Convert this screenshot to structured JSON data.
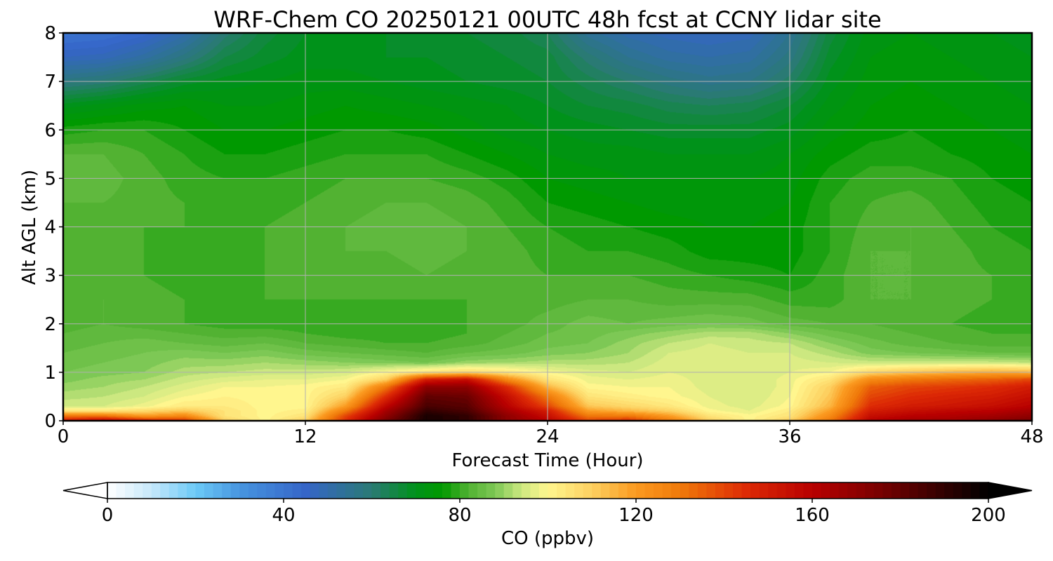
{
  "chart_data": {
    "type": "heatmap",
    "title": "WRF-Chem CO  20250121 00UTC 48h fcst at CCNY lidar site",
    "xlabel": "Forecast Time (Hour)",
    "ylabel": "Alt AGL (km)",
    "xlim": [
      0,
      48
    ],
    "ylim": [
      0,
      8
    ],
    "x_ticks": [
      0,
      12,
      24,
      36,
      48
    ],
    "x_tick_labels": [
      "0",
      "12",
      "24",
      "36",
      "48"
    ],
    "y_ticks": [
      0,
      1,
      2,
      3,
      4,
      5,
      6,
      7,
      8
    ],
    "y_tick_labels": [
      "0",
      "1",
      "2",
      "3",
      "4",
      "5",
      "6",
      "7",
      "8"
    ],
    "grid": true,
    "x": [
      0,
      2,
      4,
      6,
      8,
      10,
      12,
      14,
      16,
      18,
      20,
      22,
      24,
      26,
      28,
      30,
      32,
      34,
      36,
      38,
      40,
      42,
      44,
      46,
      48
    ],
    "y": [
      0,
      0.1,
      0.2,
      0.3,
      0.5,
      0.7,
      0.85,
      1.0,
      1.2,
      1.4,
      1.6,
      1.8,
      2.0,
      2.5,
      3.0,
      3.5,
      4.0,
      4.5,
      5.0,
      5.5,
      6.0,
      6.5,
      7.0,
      7.5,
      8.0
    ],
    "values": [
      [
        150,
        160,
        150,
        145,
        110,
        100,
        110,
        145,
        175,
        195,
        190,
        170,
        160,
        140,
        145,
        130,
        110,
        100,
        110,
        130,
        160,
        165,
        165,
        170,
        175
      ],
      [
        130,
        130,
        120,
        125,
        105,
        100,
        105,
        140,
        170,
        195,
        190,
        170,
        155,
        130,
        130,
        120,
        105,
        100,
        105,
        125,
        155,
        160,
        162,
        165,
        170
      ],
      [
        105,
        105,
        108,
        112,
        105,
        100,
        102,
        130,
        165,
        190,
        185,
        165,
        150,
        120,
        115,
        110,
        100,
        97,
        103,
        120,
        150,
        155,
        158,
        160,
        165
      ],
      [
        95,
        95,
        98,
        103,
        103,
        100,
        100,
        120,
        158,
        185,
        182,
        160,
        140,
        112,
        108,
        104,
        98,
        96,
        100,
        115,
        145,
        150,
        152,
        155,
        160
      ],
      [
        92,
        93,
        95,
        99,
        101,
        100,
        100,
        110,
        145,
        180,
        178,
        155,
        130,
        105,
        102,
        100,
        97,
        95,
        99,
        112,
        140,
        145,
        148,
        150,
        155
      ],
      [
        90,
        91,
        93,
        96,
        99,
        99,
        100,
        103,
        130,
        170,
        170,
        145,
        115,
        100,
        99,
        99,
        96,
        95,
        98,
        110,
        135,
        140,
        142,
        145,
        150
      ],
      [
        88,
        90,
        91,
        94,
        96,
        97,
        97,
        99,
        110,
        150,
        155,
        125,
        105,
        98,
        97,
        98,
        96,
        95,
        98,
        105,
        125,
        130,
        133,
        135,
        140
      ],
      [
        87,
        88,
        89,
        92,
        93,
        94,
        94,
        95,
        100,
        105,
        108,
        104,
        99,
        96,
        95,
        97,
        96,
        95,
        97,
        99,
        108,
        112,
        115,
        117,
        115
      ],
      [
        86,
        87,
        88,
        90,
        90,
        91,
        90,
        89,
        88,
        87,
        90,
        91,
        92,
        92,
        93,
        96,
        96,
        95,
        96,
        95,
        94,
        94,
        94,
        94,
        93
      ],
      [
        85,
        86,
        87,
        88,
        87,
        88,
        86,
        85,
        84,
        83,
        85,
        86,
        88,
        89,
        91,
        95,
        96,
        95,
        95,
        92,
        88,
        87,
        86,
        85,
        85
      ],
      [
        84,
        85,
        86,
        85,
        84,
        85,
        83,
        82,
        81,
        81,
        82,
        84,
        86,
        87,
        90,
        93,
        95,
        94,
        93,
        89,
        86,
        84,
        83,
        82,
        82
      ],
      [
        83,
        84,
        84,
        83,
        82,
        82,
        81,
        80,
        80,
        80,
        81,
        83,
        85,
        86,
        88,
        90,
        92,
        92,
        89,
        86,
        84,
        83,
        82,
        81,
        81
      ],
      [
        82,
        83,
        82,
        81,
        80,
        80,
        80,
        80,
        80,
        80,
        81,
        82,
        84,
        86,
        85,
        86,
        87,
        86,
        84,
        83,
        83,
        82,
        81,
        80,
        80
      ],
      [
        82,
        83,
        82,
        81,
        80,
        81,
        81,
        81,
        81,
        81,
        81,
        82,
        82,
        83,
        83,
        82,
        82,
        82,
        80,
        80,
        83,
        83,
        82,
        81,
        80
      ],
      [
        82,
        82,
        81,
        80,
        80,
        81,
        82,
        82,
        82,
        83,
        82,
        82,
        81,
        81,
        81,
        80,
        79,
        78,
        77,
        80,
        83,
        83,
        82,
        81,
        80
      ],
      [
        82,
        82,
        81,
        80,
        80,
        81,
        82,
        83,
        83,
        84,
        83,
        82,
        80,
        79,
        79,
        78,
        76,
        76,
        76,
        79,
        83,
        83,
        82,
        80,
        79
      ],
      [
        82,
        82,
        81,
        81,
        80,
        81,
        82,
        83,
        84,
        84,
        83,
        81,
        79,
        78,
        77,
        76,
        75,
        75,
        76,
        79,
        82,
        83,
        81,
        79,
        78
      ],
      [
        83,
        83,
        82,
        81,
        80,
        80,
        81,
        82,
        83,
        83,
        82,
        80,
        77,
        76,
        75,
        74,
        74,
        74,
        75,
        79,
        81,
        82,
        80,
        78,
        77
      ],
      [
        84,
        84,
        82,
        80,
        79,
        79,
        80,
        81,
        81,
        81,
        80,
        78,
        75,
        74,
        73,
        73,
        73,
        73,
        74,
        78,
        80,
        80,
        79,
        77,
        76
      ],
      [
        83,
        83,
        81,
        79,
        77,
        77,
        78,
        79,
        79,
        79,
        77,
        75,
        73,
        72,
        72,
        71,
        71,
        71,
        73,
        76,
        78,
        78,
        77,
        76,
        75
      ],
      [
        78,
        79,
        79,
        77,
        75,
        75,
        76,
        77,
        77,
        76,
        74,
        72,
        71,
        70,
        69,
        68,
        68,
        68,
        70,
        74,
        76,
        77,
        76,
        75,
        74
      ],
      [
        70,
        72,
        74,
        75,
        73,
        73,
        74,
        75,
        74,
        73,
        72,
        71,
        69,
        67,
        66,
        64,
        63,
        64,
        67,
        72,
        75,
        76,
        75,
        74,
        73
      ],
      [
        58,
        60,
        64,
        68,
        70,
        71,
        72,
        72,
        71,
        70,
        69,
        68,
        67,
        64,
        61,
        58,
        56,
        57,
        62,
        70,
        74,
        75,
        74,
        73,
        72
      ],
      [
        47,
        48,
        52,
        58,
        65,
        68,
        70,
        70,
        69,
        69,
        68,
        67,
        66,
        60,
        55,
        52,
        51,
        52,
        58,
        68,
        73,
        74,
        73,
        72,
        71
      ],
      [
        40,
        41,
        44,
        50,
        60,
        66,
        69,
        70,
        69,
        68,
        67,
        66,
        63,
        54,
        50,
        48,
        47,
        48,
        55,
        66,
        72,
        73,
        72,
        71,
        70
      ]
    ],
    "colorbar": {
      "label": "CO  (ppbv)",
      "min": 0,
      "max": 200,
      "ticks": [
        0,
        40,
        80,
        120,
        160,
        200
      ],
      "tick_labels": [
        "0",
        "40",
        "80",
        "120",
        "160",
        "200"
      ],
      "extend": "both",
      "stops": [
        {
          "value": 0,
          "color": "#ffffff"
        },
        {
          "value": 10,
          "color": "#c6e8fb"
        },
        {
          "value": 20,
          "color": "#6ccaf7"
        },
        {
          "value": 30,
          "color": "#4795e0"
        },
        {
          "value": 45,
          "color": "#3565c8"
        },
        {
          "value": 60,
          "color": "#2a7a74"
        },
        {
          "value": 70,
          "color": "#00921a"
        },
        {
          "value": 76,
          "color": "#009900"
        },
        {
          "value": 82,
          "color": "#52b232"
        },
        {
          "value": 88,
          "color": "#7dc855"
        },
        {
          "value": 94,
          "color": "#cce880"
        },
        {
          "value": 100,
          "color": "#fff68e"
        },
        {
          "value": 110,
          "color": "#fdd060"
        },
        {
          "value": 120,
          "color": "#fb9a20"
        },
        {
          "value": 130,
          "color": "#f07a0a"
        },
        {
          "value": 145,
          "color": "#dd2a05"
        },
        {
          "value": 160,
          "color": "#b80000"
        },
        {
          "value": 175,
          "color": "#7a0000"
        },
        {
          "value": 190,
          "color": "#300000"
        },
        {
          "value": 200,
          "color": "#000000"
        }
      ]
    }
  }
}
